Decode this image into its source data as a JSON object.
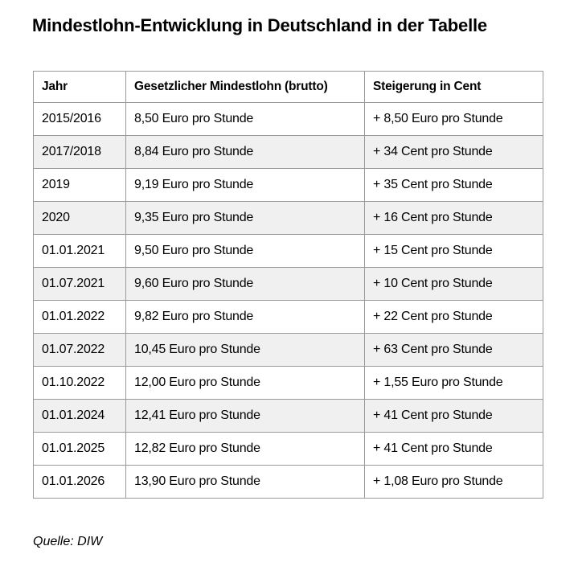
{
  "title": "Mindestlohn-Entwicklung in Deutschland in der Tabelle",
  "source": "Quelle: DIW",
  "chart_data": {
    "type": "table",
    "title": "Mindestlohn-Entwicklung in Deutschland in der Tabelle",
    "columns": [
      "Jahr",
      "Gesetzlicher Mindestlohn (brutto)",
      "Steigerung in Cent"
    ],
    "rows": [
      {
        "jahr": "2015/2016",
        "mindestlohn": "8,50 Euro pro Stunde",
        "steigerung": "+ 8,50 Euro pro Stunde",
        "shaded": false
      },
      {
        "jahr": "2017/2018",
        "mindestlohn": "8,84 Euro pro Stunde",
        "steigerung": "+ 34 Cent pro Stunde",
        "shaded": true
      },
      {
        "jahr": "2019",
        "mindestlohn": "9,19 Euro pro Stunde",
        "steigerung": "+ 35 Cent pro Stunde",
        "shaded": false
      },
      {
        "jahr": "2020",
        "mindestlohn": "9,35 Euro pro Stunde",
        "steigerung": "+ 16 Cent pro Stunde",
        "shaded": true
      },
      {
        "jahr": "01.01.2021",
        "mindestlohn": "9,50 Euro pro Stunde",
        "steigerung": "+ 15 Cent pro Stunde",
        "shaded": false
      },
      {
        "jahr": "01.07.2021",
        "mindestlohn": "9,60 Euro pro Stunde",
        "steigerung": "+ 10 Cent pro Stunde",
        "shaded": true
      },
      {
        "jahr": "01.01.2022",
        "mindestlohn": "9,82 Euro pro Stunde",
        "steigerung": "+ 22 Cent pro Stunde",
        "shaded": false
      },
      {
        "jahr": "01.07.2022",
        "mindestlohn": "10,45 Euro pro Stunde",
        "steigerung": "+ 63 Cent pro Stunde",
        "shaded": true
      },
      {
        "jahr": "01.10.2022",
        "mindestlohn": "12,00 Euro pro Stunde",
        "steigerung": "+ 1,55 Euro pro Stunde",
        "shaded": false
      },
      {
        "jahr": "01.01.2024",
        "mindestlohn": "12,41 Euro pro Stunde",
        "steigerung": "+ 41 Cent pro Stunde",
        "shaded": true
      },
      {
        "jahr": "01.01.2025",
        "mindestlohn": "12,82 Euro pro Stunde",
        "steigerung": "+ 41 Cent pro Stunde",
        "shaded": false
      },
      {
        "jahr": "01.01.2026",
        "mindestlohn": "13,90 Euro pro Stunde",
        "steigerung": "+ 1,08 Euro pro Stunde",
        "shaded": false
      }
    ]
  },
  "colors": {
    "stripe": "#f0f0f0",
    "border": "#999999",
    "text": "#000000",
    "background": "#ffffff"
  }
}
